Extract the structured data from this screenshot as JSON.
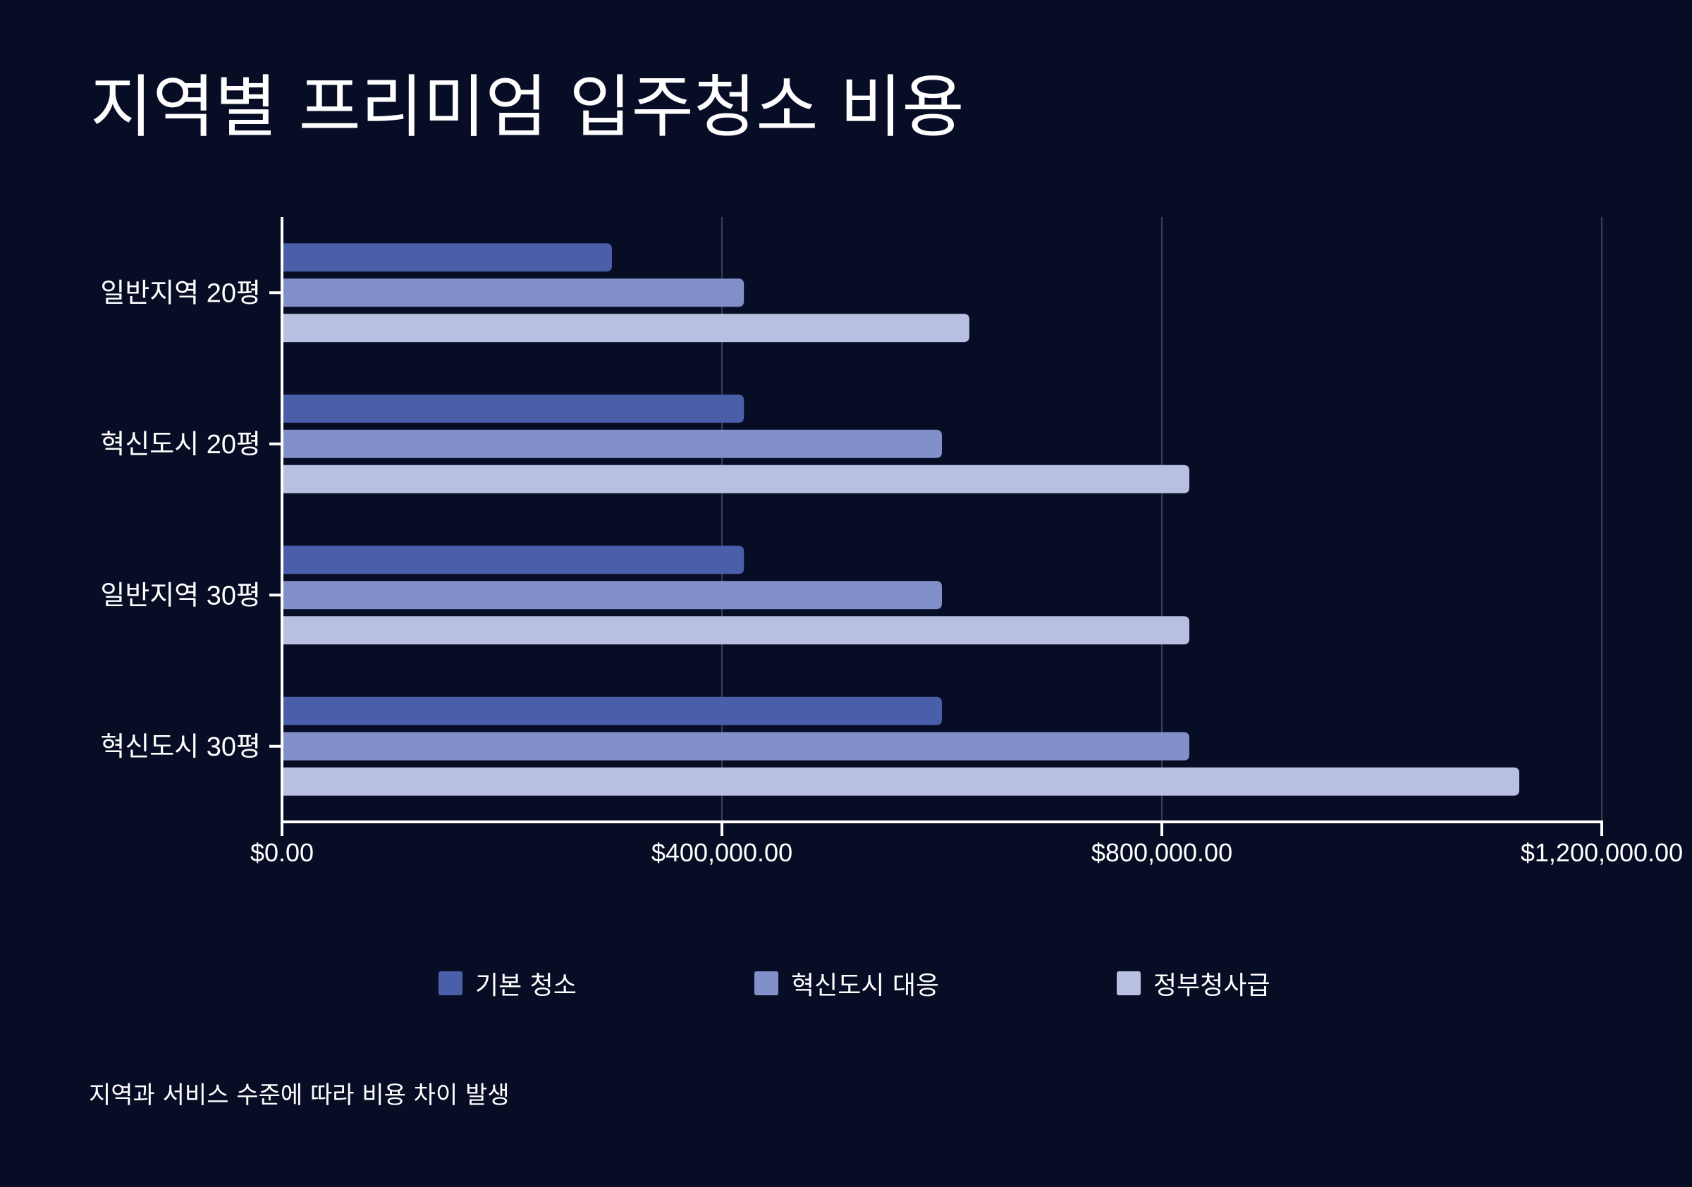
{
  "title": "지역별 프리미엄 입주청소 비용",
  "footnote": "지역과 서비스 수준에 따라 비용 차이 발생",
  "colors": {
    "background": "#080d26",
    "axis": "#ffffff",
    "grid": "#3a3f58"
  },
  "chart_data": {
    "type": "bar",
    "orientation": "horizontal",
    "categories": [
      "일반지역 20평",
      "혁신도시 20평",
      "일반지역 30평",
      "혁신도시 30평"
    ],
    "series": [
      {
        "name": "기본 청소",
        "color": "#4b5eaa",
        "values": [
          300000,
          420000,
          420000,
          600000
        ]
      },
      {
        "name": "혁신도시 대응",
        "color": "#8190c8",
        "values": [
          420000,
          600000,
          600000,
          825000
        ]
      },
      {
        "name": "정부청사급",
        "color": "#b8bfe0",
        "values": [
          625000,
          825000,
          825000,
          1125000
        ]
      }
    ],
    "xlim": [
      0,
      1200000
    ],
    "xticks": [
      0,
      400000,
      800000,
      1200000
    ],
    "xtick_labels": [
      "$0.00",
      "$400,000.00",
      "$800,000.00",
      "$1,200,000.00"
    ],
    "grid": "vertical",
    "legend": "bottom"
  }
}
